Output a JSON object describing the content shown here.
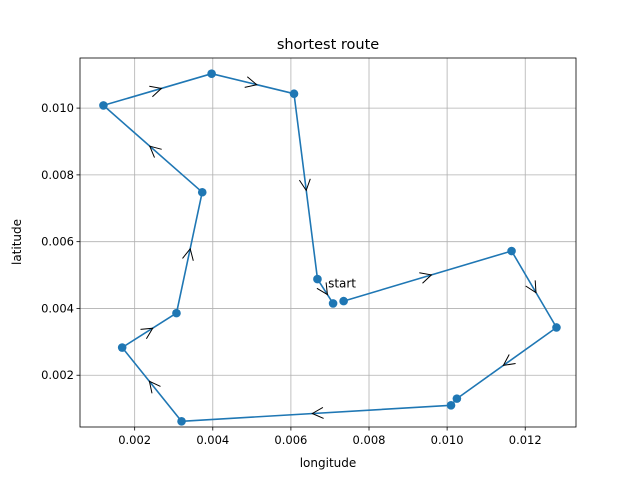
{
  "chart_data": {
    "type": "line",
    "title": "shortest route",
    "xlabel": "longitude",
    "ylabel": "latitude",
    "xlim": [
      0.0006,
      0.0133
    ],
    "ylim": [
      0.00045,
      0.0115
    ],
    "xticks": [
      0.002,
      0.004,
      0.006,
      0.008,
      0.01,
      0.012
    ],
    "yticks": [
      0.002,
      0.004,
      0.006,
      0.008,
      0.01
    ],
    "xtick_labels": [
      "0.002",
      "0.004",
      "0.006",
      "0.008",
      "0.010",
      "0.012"
    ],
    "ytick_labels": [
      "0.002",
      "0.004",
      "0.006",
      "0.008",
      "0.010"
    ],
    "grid": true,
    "series": [
      {
        "color": "#1f77b4",
        "points": [
          [
            0.00735,
            0.00422
          ],
          [
            0.01165,
            0.00572
          ],
          [
            0.0128,
            0.00343
          ],
          [
            0.01025,
            0.0013
          ],
          [
            0.0101,
            0.0011
          ],
          [
            0.0032,
            0.00062
          ],
          [
            0.00168,
            0.00283
          ],
          [
            0.00307,
            0.00386
          ],
          [
            0.00373,
            0.00748
          ],
          [
            0.0012,
            0.01008
          ],
          [
            0.00397,
            0.01103
          ],
          [
            0.00608,
            0.01043
          ],
          [
            0.00668,
            0.00488
          ],
          [
            0.00708,
            0.00415
          ]
        ]
      }
    ],
    "annotations": [
      {
        "text": "start",
        "x": 0.00708,
        "y": 0.00415
      }
    ]
  }
}
